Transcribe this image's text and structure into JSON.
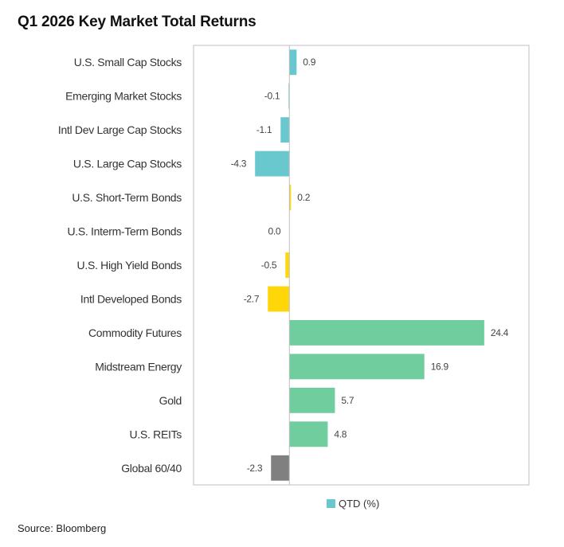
{
  "chart_data": {
    "type": "bar",
    "orientation": "horizontal",
    "title": "Q1 2026 Key Market Total Returns",
    "categories": [
      "U.S. Small Cap Stocks",
      "Emerging Market Stocks",
      "Intl Dev Large Cap Stocks",
      "U.S. Large Cap Stocks",
      "U.S. Short-Term Bonds",
      "U.S. Interm-Term Bonds",
      "U.S. High Yield Bonds",
      "Intl Developed Bonds",
      "Commodity Futures",
      "Midstream Energy",
      "Gold",
      "U.S. REITs",
      "Global 60/40"
    ],
    "series": [
      {
        "name": "QTD (%)",
        "values": [
          0.9,
          -0.1,
          -1.1,
          -4.3,
          0.2,
          0.0,
          -0.5,
          -2.7,
          24.4,
          16.9,
          5.7,
          4.8,
          -2.3
        ]
      }
    ],
    "data_labels": [
      "0.9",
      "-0.1",
      "-1.1",
      "-4.3",
      "0.2",
      "0.0",
      "-0.5",
      "-2.7",
      "24.4",
      "16.9",
      "5.7",
      "4.8",
      "-2.3"
    ],
    "bar_colors": [
      "#68C8CD",
      "#68C8CD",
      "#68C8CD",
      "#68C8CD",
      "#FFD60A",
      "#FFD60A",
      "#FFD60A",
      "#FFD60A",
      "#6FCD9E",
      "#6FCD9E",
      "#6FCD9E",
      "#6FCD9E",
      "#808080"
    ],
    "xlim": [
      -12,
      30
    ],
    "grid": false,
    "legend_position": "bottom",
    "legend_color": "#68C8CD",
    "source": "Source: Bloomberg"
  }
}
